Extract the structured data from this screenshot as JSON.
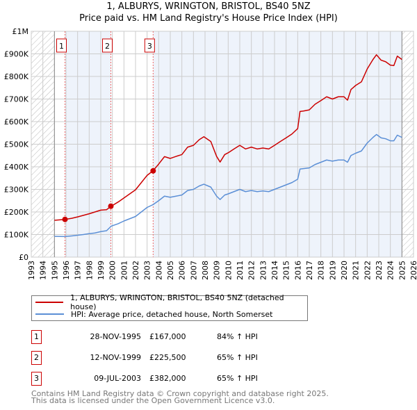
{
  "chart_data": {
    "type": "line",
    "title": "1, ALBURYS, WRINGTON, BRISTOL, BS40 5NZ",
    "subtitle": "Price paid vs. HM Land Registry's House Price Index (HPI)",
    "xlim": [
      1993,
      2026
    ],
    "ylim": [
      0,
      1000000
    ],
    "x_ticks": [
      "1993",
      "1994",
      "1995",
      "1996",
      "1997",
      "1998",
      "1999",
      "2000",
      "2001",
      "2002",
      "2003",
      "2004",
      "2005",
      "2006",
      "2007",
      "2008",
      "2009",
      "2010",
      "2011",
      "2012",
      "2013",
      "2014",
      "2015",
      "2016",
      "2017",
      "2018",
      "2019",
      "2020",
      "2021",
      "2022",
      "2023",
      "2024",
      "2025",
      "2026"
    ],
    "y_ticks": [
      {
        "v": 0,
        "label": "£0"
      },
      {
        "v": 100000,
        "label": "£100K"
      },
      {
        "v": 200000,
        "label": "£200K"
      },
      {
        "v": 300000,
        "label": "£300K"
      },
      {
        "v": 400000,
        "label": "£400K"
      },
      {
        "v": 500000,
        "label": "£500K"
      },
      {
        "v": 600000,
        "label": "£600K"
      },
      {
        "v": 700000,
        "label": "£700K"
      },
      {
        "v": 800000,
        "label": "£800K"
      },
      {
        "v": 900000,
        "label": "£900K"
      },
      {
        "v": 1000000,
        "label": "£1M"
      }
    ],
    "grid": true,
    "hatched_ranges": [
      [
        1993,
        1995
      ],
      [
        2025,
        2026
      ]
    ],
    "colors": {
      "property": "#cc0000",
      "hpi": "#5b8fd6",
      "band": "#eef3fb"
    },
    "x": [
      1995.0,
      1995.9,
      1996.5,
      1997.0,
      1997.5,
      1998.0,
      1998.5,
      1999.0,
      1999.5,
      1999.9,
      2000.5,
      2001.0,
      2001.5,
      2002.0,
      2002.5,
      2003.0,
      2003.5,
      2004.0,
      2004.5,
      2005.0,
      2005.5,
      2006.0,
      2006.5,
      2007.0,
      2007.5,
      2007.9,
      2008.5,
      2009.0,
      2009.3,
      2009.7,
      2010.0,
      2010.5,
      2011.0,
      2011.5,
      2012.0,
      2012.5,
      2013.0,
      2013.5,
      2014.0,
      2014.5,
      2015.0,
      2015.5,
      2016.0,
      2016.2,
      2016.5,
      2017.0,
      2017.5,
      2018.0,
      2018.5,
      2019.0,
      2019.5,
      2020.0,
      2020.3,
      2020.6,
      2021.0,
      2021.5,
      2022.0,
      2022.5,
      2022.8,
      2023.2,
      2023.6,
      2024.0,
      2024.3,
      2024.6,
      2025.0
    ],
    "series": [
      {
        "name": "1, ALBURYS, WRINGTON, BRISTOL, BS40 5NZ (detached house)",
        "color": "#cc0000",
        "values": [
          163000,
          167000,
          172000,
          178000,
          185000,
          192000,
          200000,
          208000,
          210000,
          225500,
          244000,
          262000,
          280000,
          298000,
          330000,
          362000,
          382000,
          412000,
          445000,
          437000,
          446000,
          454000,
          487000,
          495000,
          520000,
          533000,
          512000,
          446000,
          421000,
          454000,
          462000,
          479000,
          495000,
          479000,
          487000,
          479000,
          483000,
          479000,
          495000,
          512000,
          528000,
          545000,
          569000,
          645000,
          647000,
          652000,
          677000,
          693000,
          710000,
          700000,
          710000,
          710000,
          695000,
          742000,
          760000,
          776000,
          833000,
          875000,
          896000,
          872000,
          865000,
          850000,
          848000,
          890000,
          875000
        ]
      },
      {
        "name": "HPI: Average price, detached house, North Somerset",
        "color": "#5b8fd6",
        "values": [
          92000,
          91000,
          94000,
          97000,
          100000,
          104000,
          107000,
          113000,
          117000,
          137000,
          148000,
          160000,
          170000,
          180000,
          200000,
          220000,
          232000,
          250000,
          270000,
          265000,
          270000,
          275000,
          295000,
          300000,
          315000,
          323000,
          310000,
          270000,
          255000,
          275000,
          280000,
          290000,
          300000,
          290000,
          295000,
          290000,
          293000,
          290000,
          300000,
          310000,
          320000,
          330000,
          345000,
          390000,
          392000,
          395000,
          410000,
          420000,
          430000,
          425000,
          430000,
          430000,
          420000,
          450000,
          460000,
          470000,
          505000,
          530000,
          543000,
          528000,
          524000,
          515000,
          515000,
          540000,
          530000
        ]
      }
    ],
    "sales": [
      {
        "label": "1",
        "x": 1995.91,
        "price": 167000,
        "date": "28-NOV-1995",
        "price_text": "£167,000",
        "hpi_text": "84% ↑ HPI"
      },
      {
        "label": "2",
        "x": 1999.87,
        "price": 225500,
        "date": "12-NOV-1999",
        "price_text": "£225,500",
        "hpi_text": "65% ↑ HPI"
      },
      {
        "label": "3",
        "x": 2003.52,
        "price": 382000,
        "date": "09-JUL-2003",
        "price_text": "£382,000",
        "hpi_text": "65% ↑ HPI"
      }
    ]
  },
  "legend": {
    "property": "1, ALBURYS, WRINGTON, BRISTOL, BS40 5NZ (detached house)",
    "hpi": "HPI: Average price, detached house, North Somerset"
  },
  "footer": {
    "line1": "Contains HM Land Registry data © Crown copyright and database right 2025.",
    "line2": "This data is licensed under the Open Government Licence v3.0."
  }
}
